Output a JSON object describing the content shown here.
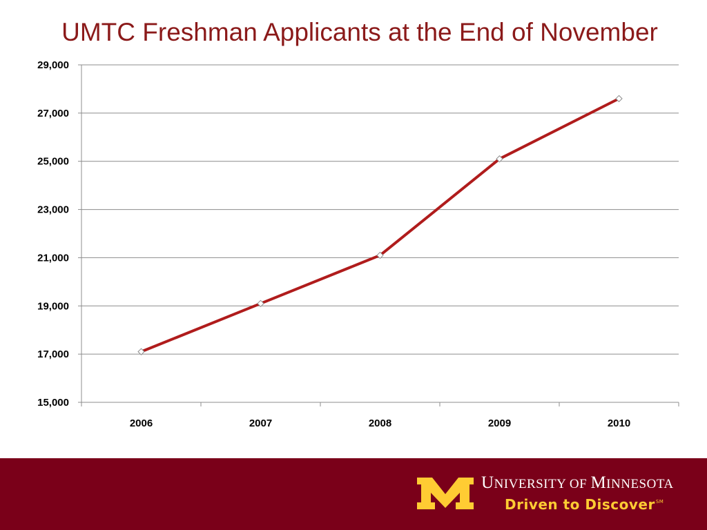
{
  "slide": {
    "title": "UMTC Freshman Applicants at the End of November"
  },
  "chart_data": {
    "type": "line",
    "title": "UMTC Freshman Applicants at the End of November",
    "xlabel": "",
    "ylabel": "",
    "categories": [
      "2006",
      "2007",
      "2008",
      "2009",
      "2010"
    ],
    "series": [
      {
        "values": [
          17100,
          19100,
          21100,
          25100,
          27600
        ],
        "color": "#b01c1c"
      }
    ],
    "ylim": [
      15000,
      29000
    ],
    "yticks": [
      15000,
      17000,
      19000,
      21000,
      23000,
      25000,
      27000,
      29000
    ],
    "ytick_labels": [
      "15,000",
      "17,000",
      "19,000",
      "21,000",
      "23,000",
      "25,000",
      "27,000",
      "29,000"
    ],
    "grid": true,
    "legend": "none",
    "marker": "diamond"
  },
  "footer": {
    "university_name_first_initial": "U",
    "university_name_first_rest": "NIVERSITY",
    "university_name_mid": " OF ",
    "university_name_second_initial": "M",
    "university_name_second_rest": "INNESOTA",
    "tagline": "Driven to Discover",
    "tagline_mark": "SM",
    "band_color": "#7a0019",
    "logo_color": "#ffcc33"
  }
}
